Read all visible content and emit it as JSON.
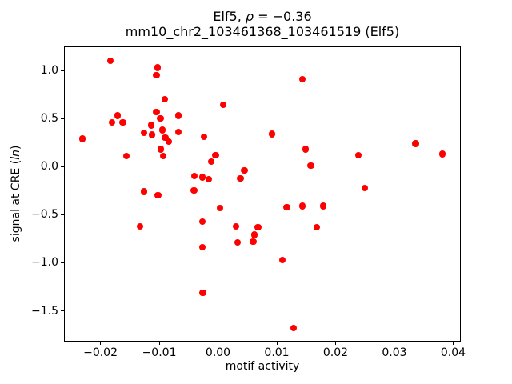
{
  "figure": {
    "background": "#ffffff",
    "title": {
      "prefix": "Elf5, ",
      "rho": "ρ",
      "rest": " = −0.36"
    },
    "subtitle": "mm10_chr2_103461368_103461519 (Elf5)",
    "xlabel": "motif activity",
    "ylabel": {
      "prefix": "signal at CRE (",
      "math": "ln",
      "suffix": ")"
    }
  },
  "chart_data": {
    "type": "scatter",
    "title": "Elf5, ρ = −0.36",
    "subtitle": "mm10_chr2_103461368_103461519 (Elf5)",
    "xlabel": "motif activity",
    "ylabel": "signal at CRE (ln)",
    "legend": null,
    "grid": false,
    "marker_color": "#ff0000",
    "marker_diameter_px": 8.3,
    "xlim": [
      -0.0262,
      0.0413
    ],
    "ylim": [
      -1.82,
      1.25
    ],
    "xticks": [
      -0.02,
      -0.01,
      0,
      0.01,
      0.02,
      0.03,
      0.04
    ],
    "xtick_labels": [
      "−0.02",
      "−0.01",
      "0.00",
      "0.01",
      "0.02",
      "0.03",
      "0.04"
    ],
    "yticks": [
      1.0,
      0.5,
      0.0,
      -0.5,
      -1.0,
      -1.5
    ],
    "ytick_labels": [
      "1.0",
      "0.5",
      "0.0",
      "−0.5",
      "−1.0",
      "−1.5"
    ],
    "points": [
      [
        -0.0183,
        1.1
      ],
      [
        -0.0103,
        1.03
      ],
      [
        -0.0105,
        0.95
      ],
      [
        -0.0091,
        0.7
      ],
      [
        0.0009,
        0.64
      ],
      [
        0.0144,
        0.91
      ],
      [
        -0.0105,
        0.57
      ],
      [
        -0.0171,
        0.53
      ],
      [
        -0.018,
        0.46
      ],
      [
        -0.0162,
        0.46
      ],
      [
        -0.0067,
        0.53
      ],
      [
        -0.0098,
        0.5
      ],
      [
        -0.0114,
        0.43
      ],
      [
        -0.0095,
        0.38
      ],
      [
        -0.0126,
        0.35
      ],
      [
        -0.0112,
        0.33
      ],
      [
        -0.0067,
        0.36
      ],
      [
        -0.0231,
        0.29
      ],
      [
        -0.0024,
        0.31
      ],
      [
        -0.009,
        0.3
      ],
      [
        -0.0084,
        0.26
      ],
      [
        -0.0097,
        0.18
      ],
      [
        -0.0156,
        0.11
      ],
      [
        -0.0093,
        0.11
      ],
      [
        -0.0004,
        0.12
      ],
      [
        -0.0012,
        0.05
      ],
      [
        0.0092,
        0.34
      ],
      [
        0.0149,
        0.18
      ],
      [
        0.0239,
        0.12
      ],
      [
        0.0336,
        0.24
      ],
      [
        0.0382,
        0.13
      ],
      [
        0.0158,
        0.01
      ],
      [
        0.0045,
        -0.04
      ],
      [
        0.0038,
        -0.12
      ],
      [
        0.025,
        -0.22
      ],
      [
        -0.004,
        -0.1
      ],
      [
        -0.0027,
        -0.11
      ],
      [
        -0.0016,
        -0.13
      ],
      [
        -0.0126,
        -0.26
      ],
      [
        -0.0102,
        -0.3
      ],
      [
        -0.0041,
        -0.25
      ],
      [
        0.0003,
        -0.43
      ],
      [
        -0.0027,
        -0.57
      ],
      [
        -0.0133,
        -0.62
      ],
      [
        0.0031,
        -0.62
      ],
      [
        0.0033,
        -0.79
      ],
      [
        -0.0027,
        -0.84
      ],
      [
        -0.0026,
        -1.31
      ],
      [
        0.0117,
        -0.42
      ],
      [
        0.0144,
        -0.41
      ],
      [
        0.0179,
        -0.41
      ],
      [
        0.0068,
        -0.63
      ],
      [
        0.0168,
        -0.63
      ],
      [
        0.0062,
        -0.71
      ],
      [
        0.006,
        -0.78
      ],
      [
        0.011,
        -0.97
      ],
      [
        0.0129,
        -1.68
      ]
    ]
  }
}
